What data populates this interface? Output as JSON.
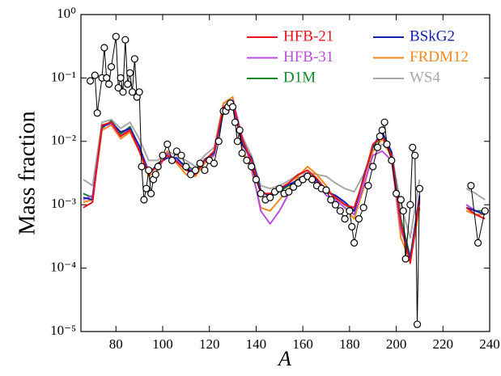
{
  "chart_data": {
    "type": "line",
    "scale_y": "log",
    "x_label": "A",
    "y_label": "Mass fraction",
    "xlim": [
      65,
      240
    ],
    "ylim": [
      1e-05,
      1
    ],
    "xticks": [
      80,
      100,
      120,
      140,
      160,
      180,
      200,
      220,
      240
    ],
    "yticks": [
      {
        "value": 1e-05,
        "label": "10⁻⁵"
      },
      {
        "value": 0.0001,
        "label": "10⁻⁴"
      },
      {
        "value": 0.001,
        "label": "10⁻³"
      },
      {
        "value": 0.01,
        "label": "10⁻²"
      },
      {
        "value": 0.1,
        "label": "10⁻¹"
      },
      {
        "value": 1,
        "label": "10⁰"
      }
    ],
    "x": [
      66,
      70,
      74,
      78,
      82,
      86,
      90,
      94,
      98,
      102,
      106,
      110,
      114,
      118,
      122,
      126,
      130,
      134,
      138,
      142,
      146,
      150,
      154,
      158,
      162,
      166,
      170,
      174,
      178,
      182,
      186,
      190,
      194,
      198,
      202,
      206,
      210,
      220,
      230,
      234,
      238
    ],
    "series": [
      {
        "name": "HFB-21",
        "color": "#e8141c",
        "values": [
          0.0009,
          0.0011,
          0.018,
          0.02,
          0.012,
          0.015,
          0.007,
          0.003,
          0.0042,
          0.006,
          0.0048,
          0.0035,
          0.003,
          0.005,
          0.007,
          0.035,
          0.04,
          0.011,
          0.005,
          0.0015,
          0.0015,
          0.0018,
          0.0022,
          0.003,
          0.0035,
          0.0026,
          0.0017,
          0.0013,
          0.001,
          0.0009,
          0.0025,
          0.009,
          0.012,
          0.006,
          0.0005,
          0.00012,
          0.0012,
          null,
          0.0009,
          0.0007,
          0.0006
        ]
      },
      {
        "name": "BSkG2",
        "color": "#1020b0",
        "values": [
          0.0013,
          0.0012,
          0.017,
          0.02,
          0.014,
          0.016,
          0.0085,
          0.003,
          0.0045,
          0.0055,
          0.0055,
          0.0038,
          0.003,
          0.0052,
          0.0066,
          0.03,
          0.038,
          0.009,
          0.0055,
          0.0017,
          0.0013,
          0.0017,
          0.0021,
          0.0024,
          0.003,
          0.0024,
          0.0016,
          0.0014,
          0.0011,
          0.0008,
          0.0027,
          0.0085,
          0.014,
          0.0068,
          0.0005,
          0.00014,
          0.0014,
          null,
          0.0009,
          0.0008,
          0.0007
        ]
      },
      {
        "name": "HFB-31",
        "color": "#b84fe0",
        "values": [
          0.0012,
          0.0014,
          0.017,
          0.019,
          0.012,
          0.016,
          0.008,
          0.0035,
          0.0038,
          0.0065,
          0.005,
          0.004,
          0.0032,
          0.0048,
          0.006,
          0.03,
          0.045,
          0.012,
          0.004,
          0.0008,
          0.0005,
          0.0008,
          0.0015,
          0.0025,
          0.0032,
          0.0022,
          0.0014,
          0.0012,
          0.0009,
          0.0007,
          0.002,
          0.006,
          0.007,
          0.005,
          0.0004,
          0.00015,
          0.0011,
          null,
          0.001,
          0.0008,
          0.0007
        ]
      },
      {
        "name": "FRDM12",
        "color": "#f08a1e",
        "values": [
          0.0011,
          0.0012,
          0.015,
          0.018,
          0.011,
          0.014,
          0.007,
          0.0028,
          0.0035,
          0.007,
          0.0045,
          0.003,
          0.0028,
          0.0045,
          0.006,
          0.04,
          0.05,
          0.008,
          0.0035,
          0.0009,
          0.0008,
          0.0012,
          0.0018,
          0.0028,
          0.004,
          0.003,
          0.002,
          0.0012,
          0.0009,
          0.0006,
          0.0018,
          0.007,
          0.011,
          0.0055,
          0.0003,
          0.00013,
          0.0009,
          null,
          0.0008,
          0.0007,
          0.0007
        ]
      },
      {
        "name": "D1M",
        "color": "#138a2a",
        "values": [
          0.0015,
          0.0013,
          0.016,
          0.021,
          0.013,
          0.017,
          0.008,
          0.0033,
          0.004,
          0.0062,
          0.005,
          0.0042,
          0.0034,
          0.005,
          0.0064,
          0.032,
          0.042,
          0.01,
          0.005,
          0.0016,
          0.0014,
          0.0016,
          0.002,
          0.0026,
          0.0031,
          0.0025,
          0.0017,
          0.0013,
          0.001,
          0.0008,
          0.0026,
          0.008,
          0.013,
          0.0065,
          0.0006,
          0.00015,
          0.0013,
          null,
          0.001,
          0.0008,
          0.0008
        ]
      },
      {
        "name": "WS4",
        "color": "#a8a8a8",
        "values": [
          0.0025,
          0.002,
          0.02,
          0.022,
          0.016,
          0.02,
          0.011,
          0.005,
          0.005,
          0.007,
          0.006,
          0.005,
          0.004,
          0.006,
          0.008,
          0.04,
          0.042,
          0.012,
          0.006,
          0.002,
          0.0018,
          0.002,
          0.0024,
          0.003,
          0.0032,
          0.003,
          0.0028,
          0.0022,
          0.0018,
          0.0016,
          0.003,
          0.007,
          0.009,
          0.0065,
          0.001,
          0.0003,
          0.0025,
          null,
          0.0018,
          0.0015,
          0.0012
        ]
      }
    ],
    "observed": {
      "color": "#000000",
      "x": [
        69,
        71,
        72,
        74,
        75,
        76,
        77,
        78,
        80,
        81,
        82,
        83,
        84,
        85,
        86,
        87,
        88,
        89,
        90,
        91,
        92,
        93,
        94,
        95,
        96,
        97,
        98,
        100,
        102,
        104,
        106,
        108,
        110,
        112,
        114,
        116,
        118,
        120,
        122,
        124,
        126,
        127,
        128,
        129,
        130,
        131,
        132,
        133,
        134,
        136,
        138,
        140,
        142,
        144,
        146,
        148,
        150,
        152,
        154,
        156,
        158,
        160,
        162,
        164,
        166,
        168,
        170,
        172,
        174,
        176,
        178,
        180,
        181,
        182,
        184,
        186,
        188,
        190,
        192,
        193,
        194,
        195,
        196,
        198,
        200,
        202,
        203,
        204,
        206,
        207,
        208,
        209,
        210,
        220,
        232,
        235,
        238
      ],
      "values": [
        0.09,
        0.11,
        0.028,
        0.1,
        0.3,
        0.1,
        0.08,
        0.15,
        0.45,
        0.07,
        0.1,
        0.06,
        0.4,
        0.08,
        0.12,
        0.06,
        0.2,
        0.05,
        0.06,
        0.004,
        0.0012,
        0.0018,
        0.0035,
        0.0015,
        0.0025,
        0.003,
        0.004,
        0.006,
        0.009,
        0.005,
        0.007,
        0.006,
        0.004,
        0.003,
        0.0035,
        0.0045,
        0.0035,
        0.005,
        0.0045,
        0.01,
        0.03,
        0.03,
        0.035,
        0.04,
        0.035,
        0.02,
        0.01,
        0.015,
        0.0065,
        0.005,
        0.004,
        0.0025,
        0.0015,
        0.0012,
        0.0013,
        0.0016,
        0.0018,
        0.0015,
        0.0016,
        0.0019,
        0.0022,
        0.0025,
        0.0028,
        0.0025,
        0.002,
        0.0018,
        0.0017,
        0.0012,
        0.001,
        0.0008,
        0.0006,
        0.0008,
        0.00045,
        0.00025,
        0.0006,
        0.0009,
        0.002,
        0.004,
        0.008,
        0.012,
        0.015,
        0.02,
        0.009,
        0.005,
        0.0015,
        0.0012,
        0.0008,
        0.00014,
        0.001,
        0.008,
        0.006,
        1.3e-05,
        0.0018,
        null,
        0.002,
        0.00025,
        0.0008
      ]
    }
  }
}
